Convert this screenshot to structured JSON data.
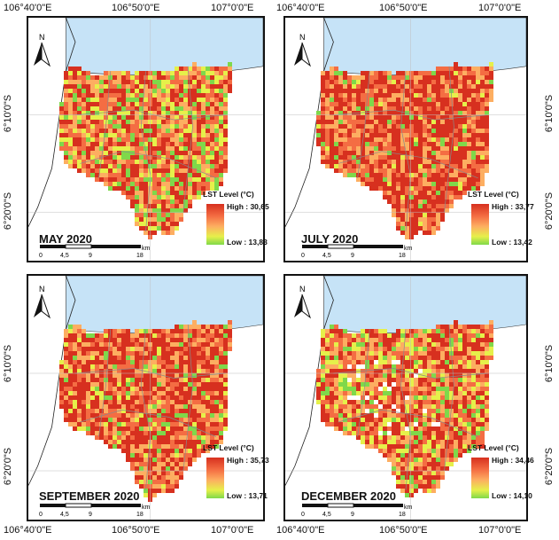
{
  "axes": {
    "top_labels": [
      "106°40'0\"E",
      "106°50'0\"E",
      "107°0'0\"E",
      "106°40'0\"E",
      "106°50'0\"E",
      "107°0'0\"E"
    ],
    "bottom_labels": [
      "106°40'0\"E",
      "106°50'0\"E",
      "107°0'0\"E",
      "106°40'0\"E",
      "106°50'0\"E",
      "107°0'0\"E"
    ],
    "left_labels": [
      "6°10'0\"S",
      "6°20'0\"S",
      "6°10'0\"S",
      "6°20'0\"S"
    ],
    "right_labels": [
      "6°10'0\"S",
      "6°20'0\"S",
      "6°10'0\"S",
      "6°20'0\"S"
    ]
  },
  "panels": [
    {
      "title": "MAY 2020",
      "legend_title": "LST Level (°C)",
      "high": "High : 30,65",
      "low": "Low : 13,83"
    },
    {
      "title": "JULY 2020",
      "legend_title": "LST Level (°C)",
      "high": "High : 33,77",
      "low": "Low : 13,42"
    },
    {
      "title": "SEPTEMBER 2020",
      "legend_title": "LST Level (°C)",
      "high": "High : 35,73",
      "low": "Low : 13,71"
    },
    {
      "title": "DECEMBER 2020",
      "legend_title": "LST Level (°C)",
      "high": "High : 34,46",
      "low": "Low : 14,10"
    }
  ],
  "scale": {
    "ticks": [
      "0",
      "4,5",
      "9",
      "18"
    ],
    "unit": "km"
  },
  "north_label": "N",
  "colors": {
    "sea": "#c6e3f7",
    "hot": "#d7301f",
    "warm": "#f46d43",
    "mid": "#fdae61",
    "cool": "#e6f04a",
    "cold": "#7fd84a"
  }
}
